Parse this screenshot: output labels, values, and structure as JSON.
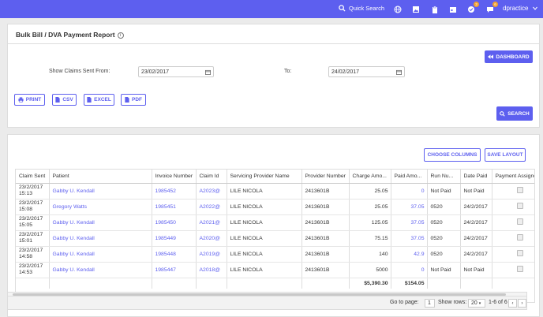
{
  "topbar": {
    "quick_search": "Quick Search",
    "badge_a": "3",
    "badge_b": "6",
    "user": "dpractice"
  },
  "report": {
    "title": "Bulk Bill / DVA Payment Report",
    "dashboard": "DASHBOARD",
    "from_label": "Show Claims Sent From:",
    "from_value": "23/02/2017",
    "to_label": "To:",
    "to_value": "24/02/2017",
    "print": "PRINT",
    "csv": "CSV",
    "excel": "EXCEL",
    "pdf": "PDF",
    "search": "SEARCH"
  },
  "grid": {
    "choose_columns": "CHOOSE COLUMNS",
    "save_layout": "SAVE LAYOUT",
    "columns": [
      "Claim Sent",
      "Patient",
      "Invoice Number",
      "Claim Id",
      "Servicing Provider Name",
      "Provider Number",
      "Charge Amo...",
      "Paid Amo...",
      "Run Nu...",
      "Date Paid",
      "Payment Assigned"
    ],
    "rows": [
      {
        "date": "23/2/2017",
        "time": "15:13",
        "patient": "Gabby U. Kendall",
        "invoice": "1985452",
        "claim": "A2023@",
        "provider": "LILE NICOLA",
        "provno": "2413601B",
        "charge": "25.05",
        "paid": "0",
        "run": "Not Paid",
        "datepaid": "Not Paid"
      },
      {
        "date": "23/2/2017",
        "time": "15:08",
        "patient": "Gregory Watts",
        "invoice": "1985451",
        "claim": "A2022@",
        "provider": "LILE NICOLA",
        "provno": "2413601B",
        "charge": "25.05",
        "paid": "37.05",
        "run": "0520",
        "datepaid": "24/2/2017"
      },
      {
        "date": "23/2/2017",
        "time": "15:05",
        "patient": "Gabby U. Kendall",
        "invoice": "1985450",
        "claim": "A2021@",
        "provider": "LILE NICOLA",
        "provno": "2413601B",
        "charge": "125.05",
        "paid": "37.05",
        "run": "0520",
        "datepaid": "24/2/2017"
      },
      {
        "date": "23/2/2017",
        "time": "15:01",
        "patient": "Gabby U. Kendall",
        "invoice": "1985449",
        "claim": "A2020@",
        "provider": "LILE NICOLA",
        "provno": "2413601B",
        "charge": "75.15",
        "paid": "37.05",
        "run": "0520",
        "datepaid": "24/2/2017"
      },
      {
        "date": "23/2/2017",
        "time": "14:58",
        "patient": "Gabby U. Kendall",
        "invoice": "1985448",
        "claim": "A2019@",
        "provider": "LILE NICOLA",
        "provno": "2413601B",
        "charge": "140",
        "paid": "42.9",
        "run": "0520",
        "datepaid": "24/2/2017"
      },
      {
        "date": "23/2/2017",
        "time": "14:53",
        "patient": "Gabby U. Kendall",
        "invoice": "1985447",
        "claim": "A2018@",
        "provider": "LILE NICOLA",
        "provno": "2413601B",
        "charge": "5000",
        "paid": "0",
        "run": "Not Paid",
        "datepaid": "Not Paid"
      }
    ],
    "total_charge": "$5,390.30",
    "total_paid": "$154.05"
  },
  "pager": {
    "goto_label": "Go to page:",
    "page": "1",
    "rows_label": "Show rows:",
    "rows": "20",
    "range": "1-6 of 6",
    "prev": "‹",
    "next": "›"
  },
  "colors": {
    "accent": "#5d5fef"
  }
}
